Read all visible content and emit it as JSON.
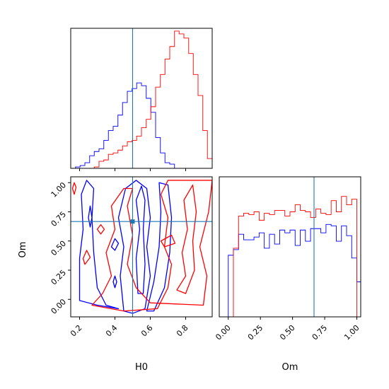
{
  "chart_data": {
    "type": "corner",
    "truth": {
      "H0": 0.5,
      "Om": 0.667
    },
    "series_colors": [
      "#0000ff",
      "#ff0000"
    ],
    "truth_color": "#1f77b4",
    "h0_hist": {
      "type": "step-histogram",
      "xlim": [
        0.15,
        0.95
      ],
      "ylim": [
        0,
        1.0
      ],
      "bins": [
        0.15,
        0.177,
        0.203,
        0.23,
        0.257,
        0.283,
        0.31,
        0.337,
        0.363,
        0.39,
        0.417,
        0.443,
        0.47,
        0.497,
        0.523,
        0.55,
        0.577,
        0.603,
        0.63,
        0.657,
        0.683,
        0.71,
        0.737,
        0.763,
        0.79,
        0.817,
        0.843,
        0.87,
        0.897,
        0.923,
        0.95
      ],
      "series": [
        {
          "values": [
            0.0,
            0.01,
            0.02,
            0.04,
            0.09,
            0.12,
            0.14,
            0.2,
            0.27,
            0.3,
            0.38,
            0.47,
            0.55,
            0.57,
            0.61,
            0.59,
            0.5,
            0.4,
            0.22,
            0.11,
            0.04,
            0.03,
            0.0,
            0.0,
            0.0,
            0.0,
            0.0,
            0.0,
            0.0,
            0.0
          ]
        },
        {
          "values": [
            0.0,
            0.0,
            0.0,
            0.0,
            0.0,
            0.01,
            0.05,
            0.06,
            0.1,
            0.11,
            0.13,
            0.16,
            0.19,
            0.2,
            0.23,
            0.29,
            0.35,
            0.44,
            0.58,
            0.67,
            0.78,
            0.87,
            0.98,
            0.96,
            0.93,
            0.82,
            0.67,
            0.52,
            0.27,
            0.07
          ]
        }
      ]
    },
    "om_hist": {
      "type": "step-histogram",
      "xlim": [
        -0.07,
        1.03
      ],
      "ylim": [
        0,
        1.0
      ],
      "bins": [
        -0.04,
        0.0,
        0.04,
        0.08,
        0.12,
        0.16,
        0.2,
        0.24,
        0.28,
        0.32,
        0.36,
        0.4,
        0.44,
        0.48,
        0.52,
        0.56,
        0.6,
        0.64,
        0.68,
        0.72,
        0.76,
        0.8,
        0.84,
        0.88,
        0.92,
        0.96,
        1.0,
        1.04
      ],
      "series": [
        {
          "values": [
            0.0,
            0.44,
            0.48,
            0.59,
            0.55,
            0.55,
            0.57,
            0.6,
            0.49,
            0.59,
            0.52,
            0.62,
            0.6,
            0.62,
            0.51,
            0.62,
            0.54,
            0.63,
            0.63,
            0.6,
            0.66,
            0.65,
            0.54,
            0.65,
            0.58,
            0.42,
            0.25
          ]
        },
        {
          "values": [
            0.0,
            0.0,
            0.49,
            0.72,
            0.74,
            0.73,
            0.75,
            0.69,
            0.74,
            0.73,
            0.76,
            0.76,
            0.72,
            0.75,
            0.8,
            0.76,
            0.75,
            0.71,
            0.77,
            0.74,
            0.73,
            0.83,
            0.75,
            0.86,
            0.8,
            0.84,
            0.0
          ]
        }
      ],
      "xticks": [
        "0.00",
        "0.25",
        "0.50",
        "0.75",
        "1.00"
      ],
      "xtick_values": [
        0.0,
        0.25,
        0.5,
        0.75,
        1.0
      ],
      "xlabel": "Om"
    },
    "joint": {
      "type": "contour",
      "xlim": [
        0.15,
        0.95
      ],
      "ylim": [
        -0.15,
        1.05
      ],
      "xlabel": "H0",
      "ylabel": "Om",
      "xticks": [
        "0.2",
        "0.4",
        "0.6",
        "0.8"
      ],
      "xtick_values": [
        0.2,
        0.4,
        0.6,
        0.8
      ],
      "yticks": [
        "0.00",
        "0.25",
        "0.50",
        "0.75",
        "1.00"
      ],
      "ytick_values": [
        0.0,
        0.25,
        0.5,
        0.75,
        1.0
      ],
      "contours": [
        {
          "series": 0,
          "points": [
            [
              0.2,
              -0.01
            ],
            [
              0.2,
              0.35
            ],
            [
              0.22,
              0.6
            ],
            [
              0.21,
              0.9
            ],
            [
              0.24,
              1.02
            ],
            [
              0.28,
              0.95
            ],
            [
              0.27,
              0.7
            ],
            [
              0.28,
              0.4
            ],
            [
              0.3,
              0.1
            ],
            [
              0.35,
              -0.05
            ],
            [
              0.42,
              -0.08
            ],
            [
              0.3,
              -0.05
            ],
            [
              0.2,
              -0.01
            ]
          ]
        },
        {
          "series": 0,
          "points": [
            [
              0.45,
              -0.1
            ],
            [
              0.43,
              0.2
            ],
            [
              0.45,
              0.45
            ],
            [
              0.42,
              0.7
            ],
            [
              0.46,
              0.95
            ],
            [
              0.52,
              1.02
            ],
            [
              0.58,
              0.95
            ],
            [
              0.6,
              0.7
            ],
            [
              0.58,
              0.45
            ],
            [
              0.6,
              0.2
            ],
            [
              0.57,
              -0.08
            ],
            [
              0.5,
              -0.12
            ],
            [
              0.45,
              -0.1
            ]
          ]
        },
        {
          "series": 0,
          "points": [
            [
              0.53,
              0.05
            ],
            [
              0.52,
              0.35
            ],
            [
              0.54,
              0.6
            ],
            [
              0.52,
              0.85
            ],
            [
              0.55,
              0.97
            ],
            [
              0.57,
              0.85
            ],
            [
              0.56,
              0.6
            ],
            [
              0.57,
              0.3
            ],
            [
              0.56,
              0.05
            ],
            [
              0.53,
              0.05
            ]
          ]
        },
        {
          "series": 0,
          "points": [
            [
              0.58,
              -0.1
            ],
            [
              0.62,
              0.15
            ],
            [
              0.65,
              0.45
            ],
            [
              0.66,
              0.75
            ],
            [
              0.65,
              1.0
            ],
            [
              0.7,
              0.98
            ],
            [
              0.72,
              0.7
            ],
            [
              0.71,
              0.4
            ],
            [
              0.68,
              0.1
            ],
            [
              0.62,
              -0.1
            ],
            [
              0.58,
              -0.1
            ]
          ]
        },
        {
          "series": 0,
          "points": [
            [
              0.25,
              0.7
            ],
            [
              0.26,
              0.62
            ],
            [
              0.27,
              0.7
            ],
            [
              0.26,
              0.8
            ],
            [
              0.25,
              0.7
            ]
          ]
        },
        {
          "series": 0,
          "points": [
            [
              0.38,
              0.45
            ],
            [
              0.4,
              0.52
            ],
            [
              0.42,
              0.48
            ],
            [
              0.4,
              0.42
            ],
            [
              0.38,
              0.45
            ]
          ]
        },
        {
          "series": 0,
          "points": [
            [
              0.39,
              0.15
            ],
            [
              0.4,
              0.2
            ],
            [
              0.41,
              0.15
            ],
            [
              0.4,
              0.1
            ],
            [
              0.39,
              0.15
            ]
          ]
        },
        {
          "series": 1,
          "points": [
            [
              0.27,
              -0.05
            ],
            [
              0.33,
              0.05
            ],
            [
              0.38,
              0.2
            ],
            [
              0.35,
              0.4
            ],
            [
              0.4,
              0.6
            ],
            [
              0.38,
              0.8
            ],
            [
              0.45,
              0.95
            ],
            [
              0.5,
              0.95
            ],
            [
              0.47,
              0.8
            ],
            [
              0.5,
              0.55
            ],
            [
              0.47,
              0.3
            ],
            [
              0.52,
              0.1
            ],
            [
              0.6,
              -0.03
            ],
            [
              0.9,
              -0.05
            ],
            [
              0.92,
              0.2
            ],
            [
              0.88,
              0.45
            ],
            [
              0.93,
              0.75
            ],
            [
              0.95,
              1.02
            ],
            [
              0.7,
              1.02
            ],
            [
              0.66,
              0.9
            ],
            [
              0.7,
              0.7
            ],
            [
              0.68,
              0.45
            ],
            [
              0.72,
              0.3
            ],
            [
              0.7,
              0.1
            ],
            [
              0.64,
              -0.08
            ],
            [
              0.45,
              -0.1
            ],
            [
              0.27,
              -0.05
            ]
          ]
        },
        {
          "series": 1,
          "points": [
            [
              0.75,
              0.08
            ],
            [
              0.8,
              0.2
            ],
            [
              0.78,
              0.4
            ],
            [
              0.81,
              0.6
            ],
            [
              0.79,
              0.85
            ],
            [
              0.84,
              0.98
            ],
            [
              0.86,
              0.75
            ],
            [
              0.84,
              0.5
            ],
            [
              0.85,
              0.25
            ],
            [
              0.8,
              0.05
            ],
            [
              0.75,
              0.08
            ]
          ]
        },
        {
          "series": 1,
          "points": [
            [
              0.66,
              0.5
            ],
            [
              0.72,
              0.55
            ],
            [
              0.74,
              0.48
            ],
            [
              0.68,
              0.45
            ],
            [
              0.66,
              0.5
            ]
          ]
        },
        {
          "series": 1,
          "points": [
            [
              0.22,
              0.35
            ],
            [
              0.24,
              0.42
            ],
            [
              0.26,
              0.36
            ],
            [
              0.23,
              0.3
            ],
            [
              0.22,
              0.35
            ]
          ]
        },
        {
          "series": 1,
          "points": [
            [
              0.3,
              0.6
            ],
            [
              0.32,
              0.64
            ],
            [
              0.34,
              0.6
            ],
            [
              0.32,
              0.56
            ],
            [
              0.3,
              0.6
            ]
          ]
        },
        {
          "series": 1,
          "points": [
            [
              0.16,
              0.95
            ],
            [
              0.17,
              1.0
            ],
            [
              0.18,
              0.96
            ],
            [
              0.17,
              0.9
            ],
            [
              0.16,
              0.95
            ]
          ]
        }
      ]
    }
  }
}
